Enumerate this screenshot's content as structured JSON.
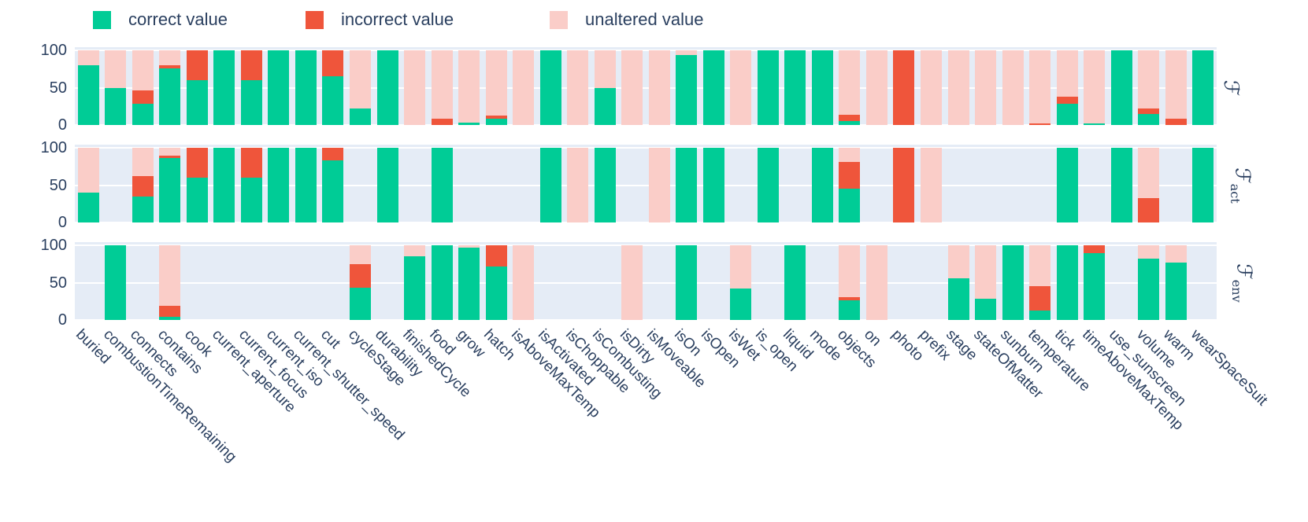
{
  "colors": {
    "correct": "#00CC96",
    "incorrect": "#EF553B",
    "unaltered": "#FACDC8",
    "panel_background": "#E5ECF6",
    "text": "#2A3F5F",
    "gridline": "#FFFFFF"
  },
  "legend": {
    "items": [
      {
        "key": "correct",
        "label": "correct value"
      },
      {
        "key": "incorrect",
        "label": "incorrect value"
      },
      {
        "key": "unaltered",
        "label": "unaltered value"
      }
    ]
  },
  "chart_data": {
    "type": "bar",
    "stacked": true,
    "orientation": "vertical",
    "grid": true,
    "legend_position": "top",
    "ylim": [
      0,
      100
    ],
    "yticks": [
      100,
      50,
      0
    ],
    "categories": [
      "buried",
      "combustionTimeRemaining",
      "connects",
      "contains",
      "cook",
      "current_aperture",
      "current_focus",
      "current_iso",
      "current_shutter_speed",
      "cut",
      "cycleStage",
      "durability",
      "finishedCycle",
      "food",
      "grow",
      "hatch",
      "isAboveMaxTemp",
      "isActivated",
      "isChoppable",
      "isCombusting",
      "isDirty",
      "isMoveable",
      "isOn",
      "isOpen",
      "isWet",
      "is_open",
      "liquid",
      "mode",
      "objects",
      "on",
      "photo",
      "prefix",
      "stage",
      "stateOfMatter",
      "sunburn",
      "temperature",
      "tick",
      "timeAboveMaxTemp",
      "use_sunscreen",
      "volume",
      "warm",
      "wearSpaceSuit"
    ],
    "panels": [
      {
        "id": "F",
        "row_label": "ℱ",
        "row_label_sub": "",
        "series": [
          {
            "name": "correct value",
            "key": "correct",
            "values": [
              80,
              50,
              28,
              76,
              60,
              100,
              60,
              100,
              100,
              65,
              22,
              100,
              0,
              0,
              3,
              8,
              0,
              100,
              0,
              50,
              0,
              0,
              94,
              100,
              0,
              100,
              100,
              100,
              5,
              0,
              0,
              0,
              0,
              0,
              0,
              0,
              28,
              2,
              100,
              15,
              0,
              100
            ]
          },
          {
            "name": "incorrect value",
            "key": "incorrect",
            "values": [
              0,
              0,
              18,
              4,
              40,
              0,
              40,
              0,
              0,
              35,
              0,
              0,
              0,
              8,
              0,
              5,
              0,
              0,
              0,
              0,
              0,
              0,
              0,
              0,
              0,
              0,
              0,
              0,
              9,
              0,
              100,
              0,
              0,
              0,
              0,
              2,
              10,
              0,
              0,
              7,
              8,
              0
            ]
          },
          {
            "name": "unaltered value",
            "key": "unaltered",
            "values": [
              20,
              50,
              54,
              20,
              0,
              0,
              0,
              0,
              0,
              0,
              78,
              0,
              100,
              92,
              97,
              87,
              100,
              0,
              100,
              50,
              100,
              100,
              6,
              0,
              100,
              0,
              0,
              0,
              86,
              100,
              0,
              100,
              100,
              100,
              100,
              98,
              62,
              98,
              0,
              78,
              92,
              0
            ]
          }
        ]
      },
      {
        "id": "F_act",
        "row_label": "ℱ",
        "row_label_sub": "act",
        "series": [
          {
            "name": "correct value",
            "key": "correct",
            "values": [
              40,
              0,
              35,
              86,
              60,
              100,
              60,
              100,
              100,
              83,
              0,
              100,
              0,
              100,
              0,
              0,
              0,
              100,
              0,
              100,
              0,
              0,
              100,
              100,
              0,
              100,
              0,
              100,
              45,
              0,
              0,
              0,
              0,
              0,
              0,
              0,
              100,
              0,
              100,
              0,
              0,
              100
            ]
          },
          {
            "name": "incorrect value",
            "key": "incorrect",
            "values": [
              0,
              0,
              27,
              4,
              40,
              0,
              40,
              0,
              0,
              17,
              0,
              0,
              0,
              0,
              0,
              0,
              0,
              0,
              0,
              0,
              0,
              0,
              0,
              0,
              0,
              0,
              0,
              0,
              36,
              0,
              100,
              0,
              0,
              0,
              0,
              0,
              0,
              0,
              0,
              33,
              0,
              0
            ]
          },
          {
            "name": "unaltered value",
            "key": "unaltered",
            "values": [
              60,
              0,
              38,
              10,
              0,
              0,
              0,
              0,
              0,
              0,
              0,
              0,
              0,
              0,
              0,
              0,
              0,
              0,
              100,
              0,
              0,
              100,
              0,
              0,
              0,
              0,
              0,
              0,
              19,
              0,
              0,
              100,
              0,
              0,
              0,
              0,
              0,
              0,
              0,
              67,
              0,
              0
            ]
          }
        ]
      },
      {
        "id": "F_env",
        "row_label": "ℱ",
        "row_label_sub": "env",
        "series": [
          {
            "name": "correct value",
            "key": "correct",
            "values": [
              0,
              100,
              0,
              4,
              0,
              0,
              0,
              0,
              0,
              0,
              43,
              0,
              85,
              100,
              97,
              72,
              0,
              0,
              0,
              0,
              0,
              0,
              100,
              0,
              42,
              0,
              100,
              0,
              26,
              0,
              0,
              0,
              56,
              28,
              100,
              13,
              100,
              89,
              0,
              82,
              77,
              0
            ]
          },
          {
            "name": "incorrect value",
            "key": "incorrect",
            "values": [
              0,
              0,
              0,
              15,
              0,
              0,
              0,
              0,
              0,
              0,
              32,
              0,
              0,
              0,
              0,
              28,
              0,
              0,
              0,
              0,
              0,
              0,
              0,
              0,
              0,
              0,
              0,
              0,
              5,
              0,
              0,
              0,
              0,
              0,
              0,
              32,
              0,
              11,
              0,
              0,
              0,
              0
            ]
          },
          {
            "name": "unaltered value",
            "key": "unaltered",
            "values": [
              0,
              0,
              0,
              81,
              0,
              0,
              0,
              0,
              0,
              0,
              25,
              0,
              15,
              0,
              3,
              0,
              100,
              0,
              0,
              0,
              100,
              0,
              0,
              0,
              58,
              0,
              0,
              0,
              69,
              100,
              0,
              0,
              44,
              72,
              0,
              55,
              0,
              0,
              0,
              18,
              23,
              0
            ]
          }
        ]
      }
    ]
  }
}
